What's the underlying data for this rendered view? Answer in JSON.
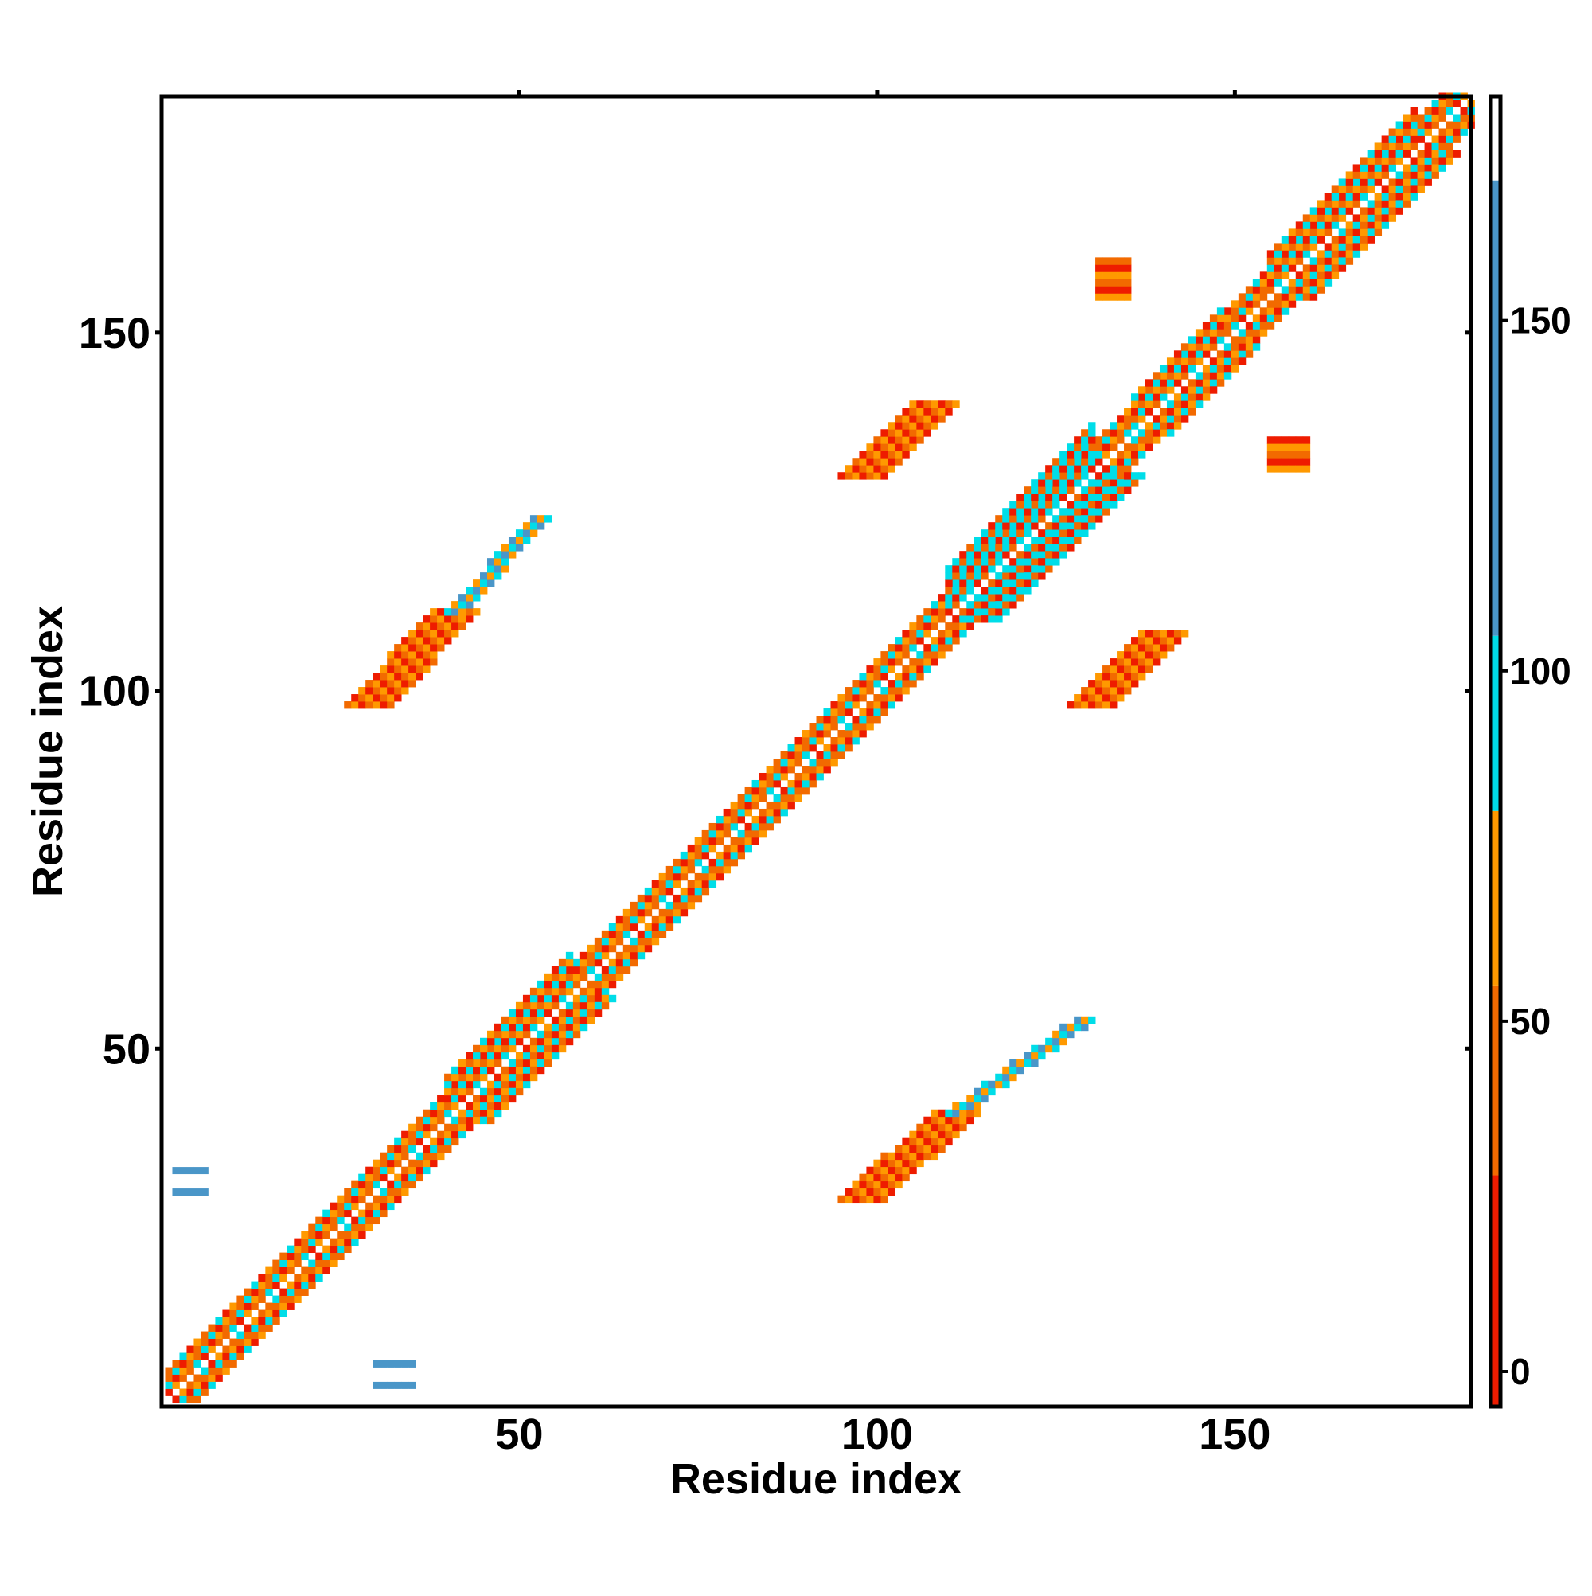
{
  "chart_data": {
    "type": "heatmap",
    "title": "",
    "xlabel": "Residue index",
    "ylabel": "Residue index",
    "x_range": [
      1,
      183
    ],
    "y_range": [
      1,
      183
    ],
    "x_ticks": [
      50,
      100,
      150
    ],
    "y_ticks": [
      50,
      100,
      150
    ],
    "colorbar": {
      "ticks": [
        0,
        50,
        100,
        150
      ],
      "range": [
        -5,
        182
      ],
      "bands": [
        {
          "from": -5,
          "to": 28,
          "color": "#ee1c00"
        },
        {
          "from": 28,
          "to": 55,
          "color": "#f26a00"
        },
        {
          "from": 55,
          "to": 80,
          "color": "#ff9900"
        },
        {
          "from": 80,
          "to": 105,
          "color": "#00dde8"
        },
        {
          "from": 105,
          "to": 170,
          "color": "#4a96c8"
        },
        {
          "from": 170,
          "to": 182,
          "color": "#ffffff"
        }
      ]
    },
    "grid": false,
    "legend": "colorbar-right",
    "diagonal": {
      "from": 1,
      "to": 183
    },
    "regions": [
      {
        "name": "diagonal-band-broad-1",
        "x": [
          40,
          57
        ],
        "y": [
          40,
          57
        ],
        "offset": 6,
        "value": 60
      },
      {
        "name": "diagonal-band-broad-2",
        "x": [
          110,
          130
        ],
        "y": [
          110,
          130
        ],
        "offset": 7,
        "value": 85
      },
      {
        "name": "diagonal-band-broad-3",
        "x": [
          136,
          148
        ],
        "y": [
          136,
          148
        ],
        "offset": 5,
        "value": 75
      },
      {
        "name": "diagonal-band-broad-4",
        "x": [
          155,
          175
        ],
        "y": [
          155,
          175
        ],
        "offset": 6,
        "value": 70
      },
      {
        "name": "strand-contact-a",
        "x_start": 29,
        "y_start": 98,
        "x_end": 41,
        "y_end": 111,
        "width": 3,
        "value": 8
      },
      {
        "name": "strand-contact-a-tail",
        "x_start": 41,
        "y_start": 111,
        "x_end": 53,
        "y_end": 124,
        "width": 1,
        "value": 60
      },
      {
        "name": "strand-contact-a-mirror",
        "x_start": 98,
        "y_start": 29,
        "x_end": 111,
        "y_end": 41,
        "width": 3,
        "value": 8
      },
      {
        "name": "strand-contact-a-mirror-tail",
        "x_start": 111,
        "y_start": 41,
        "x_end": 129,
        "y_end": 54,
        "width": 1,
        "value": 60
      },
      {
        "name": "strand-contact-b",
        "x_start": 98,
        "y_start": 130,
        "x_end": 108,
        "y_end": 140,
        "width": 3,
        "value": 10
      },
      {
        "name": "strand-contact-b-mirror",
        "x_start": 130,
        "y_start": 98,
        "x_end": 140,
        "y_end": 108,
        "width": 3,
        "value": 10
      },
      {
        "name": "patch-c",
        "x": [
          131,
          135
        ],
        "y": [
          155,
          160
        ],
        "value": 5
      },
      {
        "name": "patch-c-mirror",
        "x": [
          155,
          160
        ],
        "y": [
          131,
          135
        ],
        "value": 5
      },
      {
        "name": "patch-blue-1",
        "x": [
          2,
          6
        ],
        "y": [
          30,
          35
        ],
        "value": 140
      },
      {
        "name": "patch-blue-2",
        "x": [
          30,
          35
        ],
        "y": [
          2,
          6
        ],
        "value": 140
      }
    ]
  }
}
